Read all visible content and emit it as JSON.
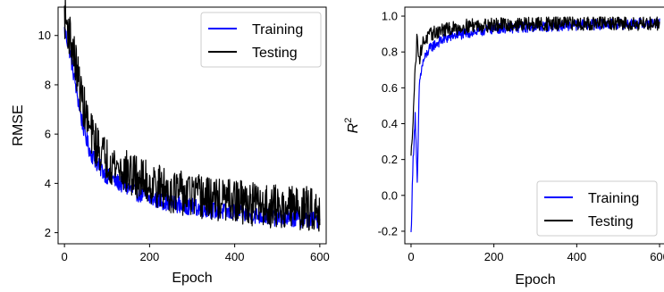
{
  "chart_data": [
    {
      "type": "line",
      "xlabel": "Epoch",
      "ylabel": "RMSE",
      "xlim": [
        -15,
        615
      ],
      "ylim": [
        1.55,
        11.15
      ],
      "xticks": [
        0,
        200,
        400,
        600
      ],
      "yticks": [
        2,
        4,
        6,
        8,
        10
      ],
      "legend": "top-right",
      "grid": false,
      "series": [
        {
          "name": "Training",
          "color": "#0000ff",
          "x": [
            0,
            10,
            20,
            30,
            40,
            50,
            60,
            80,
            100,
            130,
            160,
            200,
            250,
            300,
            350,
            400,
            450,
            500,
            550,
            600
          ],
          "y": [
            10.2,
            9.6,
            8.6,
            7.6,
            6.6,
            5.9,
            5.3,
            4.7,
            4.3,
            4.0,
            3.7,
            3.4,
            3.2,
            3.05,
            2.9,
            2.8,
            2.7,
            2.6,
            2.55,
            2.5
          ],
          "noise": 0.35
        },
        {
          "name": "Testing",
          "color": "#000000",
          "x": [
            0,
            10,
            20,
            30,
            40,
            50,
            60,
            80,
            100,
            130,
            160,
            200,
            250,
            300,
            350,
            400,
            450,
            500,
            550,
            600
          ],
          "y": [
            10.8,
            10.2,
            9.4,
            8.5,
            7.5,
            6.8,
            6.1,
            5.4,
            5.0,
            4.6,
            4.3,
            4.0,
            3.7,
            3.5,
            3.35,
            3.25,
            3.15,
            3.05,
            3.0,
            2.95
          ],
          "noise": 0.9
        }
      ]
    },
    {
      "type": "line",
      "xlabel": "Epoch",
      "ylabel": "R²",
      "ylabel_base": "R",
      "ylabel_sup": "2",
      "xlim": [
        -15,
        615
      ],
      "ylim": [
        -0.27,
        1.05
      ],
      "xticks": [
        0,
        200,
        400,
        600
      ],
      "yticks": [
        -0.2,
        0.0,
        0.2,
        0.4,
        0.6,
        0.8,
        1.0
      ],
      "legend": "bottom-right",
      "grid": false,
      "series": [
        {
          "name": "Training",
          "color": "#0000ff",
          "x": [
            0,
            5,
            10,
            15,
            20,
            25,
            30,
            40,
            50,
            70,
            100,
            150,
            200,
            300,
            400,
            500,
            600
          ],
          "y": [
            -0.22,
            0.2,
            0.45,
            0.05,
            0.62,
            0.7,
            0.75,
            0.8,
            0.83,
            0.86,
            0.89,
            0.91,
            0.93,
            0.94,
            0.95,
            0.955,
            0.96
          ],
          "noise": 0.03
        },
        {
          "name": "Testing",
          "color": "#000000",
          "x": [
            0,
            5,
            10,
            15,
            20,
            25,
            30,
            40,
            50,
            70,
            100,
            150,
            200,
            300,
            400,
            500,
            600
          ],
          "y": [
            0.2,
            0.45,
            0.7,
            0.9,
            0.75,
            0.82,
            0.86,
            0.88,
            0.9,
            0.92,
            0.93,
            0.95,
            0.95,
            0.955,
            0.96,
            0.96,
            0.96
          ],
          "noise": 0.04
        }
      ]
    }
  ]
}
